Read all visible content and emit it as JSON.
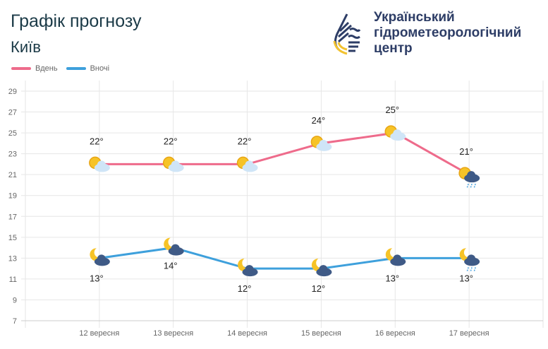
{
  "header": {
    "title": "Графік прогнозу",
    "city": "Київ"
  },
  "logo": {
    "lines": [
      "Український",
      "гідрометеорологічний",
      "центр"
    ]
  },
  "chart_data": {
    "type": "line",
    "title": "Графік прогнозу",
    "categories": [
      "12 вересня",
      "13 вересня",
      "14 вересня",
      "15 вересня",
      "16 вересня",
      "17 вересня"
    ],
    "yticks": [
      7,
      9,
      11,
      13,
      15,
      17,
      19,
      21,
      23,
      25,
      27,
      29
    ],
    "ylim": [
      7,
      29
    ],
    "grid": true,
    "legend_position": "top-left",
    "series": [
      {
        "name": "Вдень",
        "color": "#ee6b8b",
        "values": [
          22,
          22,
          22,
          24,
          25,
          21
        ],
        "labels": [
          "22°",
          "22°",
          "22°",
          "24°",
          "25°",
          "21°"
        ],
        "icons": [
          "sun-cloud",
          "sun-cloud",
          "sun-cloud",
          "sun-cloud",
          "sun-cloud",
          "sun-cloud-rain"
        ]
      },
      {
        "name": "Вночі",
        "color": "#3ea0dc",
        "values": [
          13,
          14,
          12,
          12,
          13,
          13
        ],
        "labels": [
          "13°",
          "14°",
          "12°",
          "12°",
          "13°",
          "13°"
        ],
        "icons": [
          "moon-cloud",
          "moon-cloud",
          "moon-cloud",
          "moon-cloud",
          "moon-cloud",
          "moon-cloud-rain"
        ]
      }
    ]
  }
}
